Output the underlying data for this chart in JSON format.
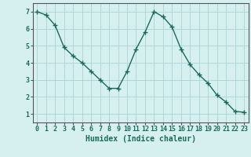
{
  "x": [
    0,
    1,
    2,
    3,
    4,
    5,
    6,
    7,
    8,
    9,
    10,
    11,
    12,
    13,
    14,
    15,
    16,
    17,
    18,
    19,
    20,
    21,
    22,
    23
  ],
  "y": [
    7.0,
    6.8,
    6.2,
    4.9,
    4.4,
    4.0,
    3.5,
    3.0,
    2.5,
    2.5,
    3.5,
    4.8,
    5.8,
    7.0,
    6.7,
    6.1,
    4.8,
    3.9,
    3.3,
    2.8,
    2.1,
    1.7,
    1.15,
    1.1
  ],
  "line_color": "#1a6b5a",
  "marker": "+",
  "bg_color": "#d6f0f0",
  "grid_color": "#b0d8d8",
  "xlabel": "Humidex (Indice chaleur)",
  "xlabel_fontsize": 7,
  "tick_fontsize": 6,
  "xlim": [
    -0.5,
    23.5
  ],
  "ylim": [
    0.5,
    7.5
  ],
  "yticks": [
    1,
    2,
    3,
    4,
    5,
    6,
    7
  ],
  "xticks": [
    0,
    1,
    2,
    3,
    4,
    5,
    6,
    7,
    8,
    9,
    10,
    11,
    12,
    13,
    14,
    15,
    16,
    17,
    18,
    19,
    20,
    21,
    22,
    23
  ],
  "xtick_labels": [
    "0",
    "1",
    "2",
    "3",
    "4",
    "5",
    "6",
    "7",
    "8",
    "9",
    "10",
    "11",
    "12",
    "13",
    "14",
    "15",
    "16",
    "17",
    "18",
    "19",
    "20",
    "21",
    "22",
    "23"
  ]
}
